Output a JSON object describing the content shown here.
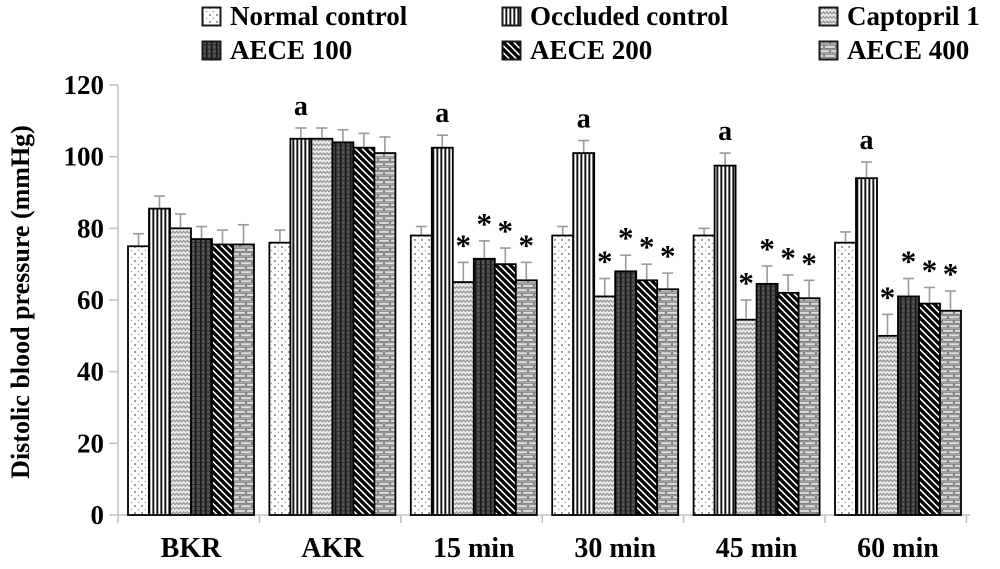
{
  "y_axis_title": "Distolic blood pressure (mmHg)",
  "chart_data": {
    "type": "bar",
    "title": "",
    "xlabel": "",
    "ylabel": "Distolic blood pressure (mmHg)",
    "ylim": [
      0,
      120
    ],
    "yticks": [
      0,
      20,
      40,
      60,
      80,
      100,
      120
    ],
    "grid": false,
    "legend_position": "top",
    "categories": [
      "BKR",
      "AKR",
      "15 min",
      "30 min",
      "45 min",
      "60 min"
    ],
    "series": [
      {
        "name": "Normal control",
        "pattern": "dots",
        "values": [
          75,
          76,
          78,
          78,
          78,
          76
        ],
        "errors": [
          3.5,
          3.5,
          2.5,
          2.5,
          2,
          3
        ]
      },
      {
        "name": "Occluded control",
        "pattern": "vlines",
        "values": [
          85.5,
          105,
          102.5,
          101,
          97.5,
          94
        ],
        "errors": [
          3.5,
          3,
          3.5,
          3.5,
          3.5,
          4.5
        ]
      },
      {
        "name": "Captopril 1",
        "pattern": "wave",
        "values": [
          80,
          105,
          65,
          61,
          54.5,
          50
        ],
        "errors": [
          4,
          3,
          5.5,
          5,
          5.5,
          6
        ]
      },
      {
        "name": "AECE 100",
        "pattern": "dark",
        "values": [
          77,
          104,
          71.5,
          68,
          64.5,
          61
        ],
        "errors": [
          3.5,
          3.5,
          5,
          4.5,
          5,
          5
        ]
      },
      {
        "name": "AECE 200",
        "pattern": "diag",
        "values": [
          75.5,
          102.5,
          70,
          65.5,
          62,
          59
        ],
        "errors": [
          4,
          4,
          4.5,
          4.5,
          5,
          4.5
        ]
      },
      {
        "name": "AECE 400",
        "pattern": "brick",
        "values": [
          75.5,
          101,
          65.5,
          63,
          60.5,
          57
        ],
        "errors": [
          5.5,
          4.5,
          5,
          4.5,
          5,
          5.5
        ]
      }
    ],
    "annotations": {
      "a_label": "a",
      "a_series_index": 1,
      "a_group_indices": [
        1,
        2,
        3,
        4,
        5
      ],
      "star_label": "*",
      "star_series_indices": [
        2,
        3,
        4,
        5
      ],
      "star_group_indices": [
        2,
        3,
        4,
        5
      ]
    },
    "style": {
      "axis_color": "#c3c3c3",
      "error_bar_color": "#9a9a9a",
      "bar_edge_color": "#000000",
      "text_color": "#000000"
    }
  }
}
